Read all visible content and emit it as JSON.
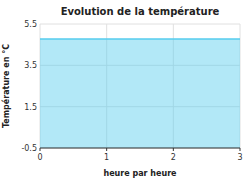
{
  "chart_data": {
    "type": "area",
    "title": "Evolution de la température",
    "x_label": "heure par heure",
    "y_label": "Température en °C",
    "x": [
      0,
      3
    ],
    "values": [
      4.78,
      4.78
    ],
    "color": "#55ccee",
    "xlim": [
      0,
      3
    ],
    "ylim": [
      -0.5,
      5.5
    ],
    "xticks": [
      0,
      1,
      2,
      3
    ],
    "yticks": [
      -0.5,
      1.5,
      3.5,
      5.5
    ],
    "grid": true
  }
}
